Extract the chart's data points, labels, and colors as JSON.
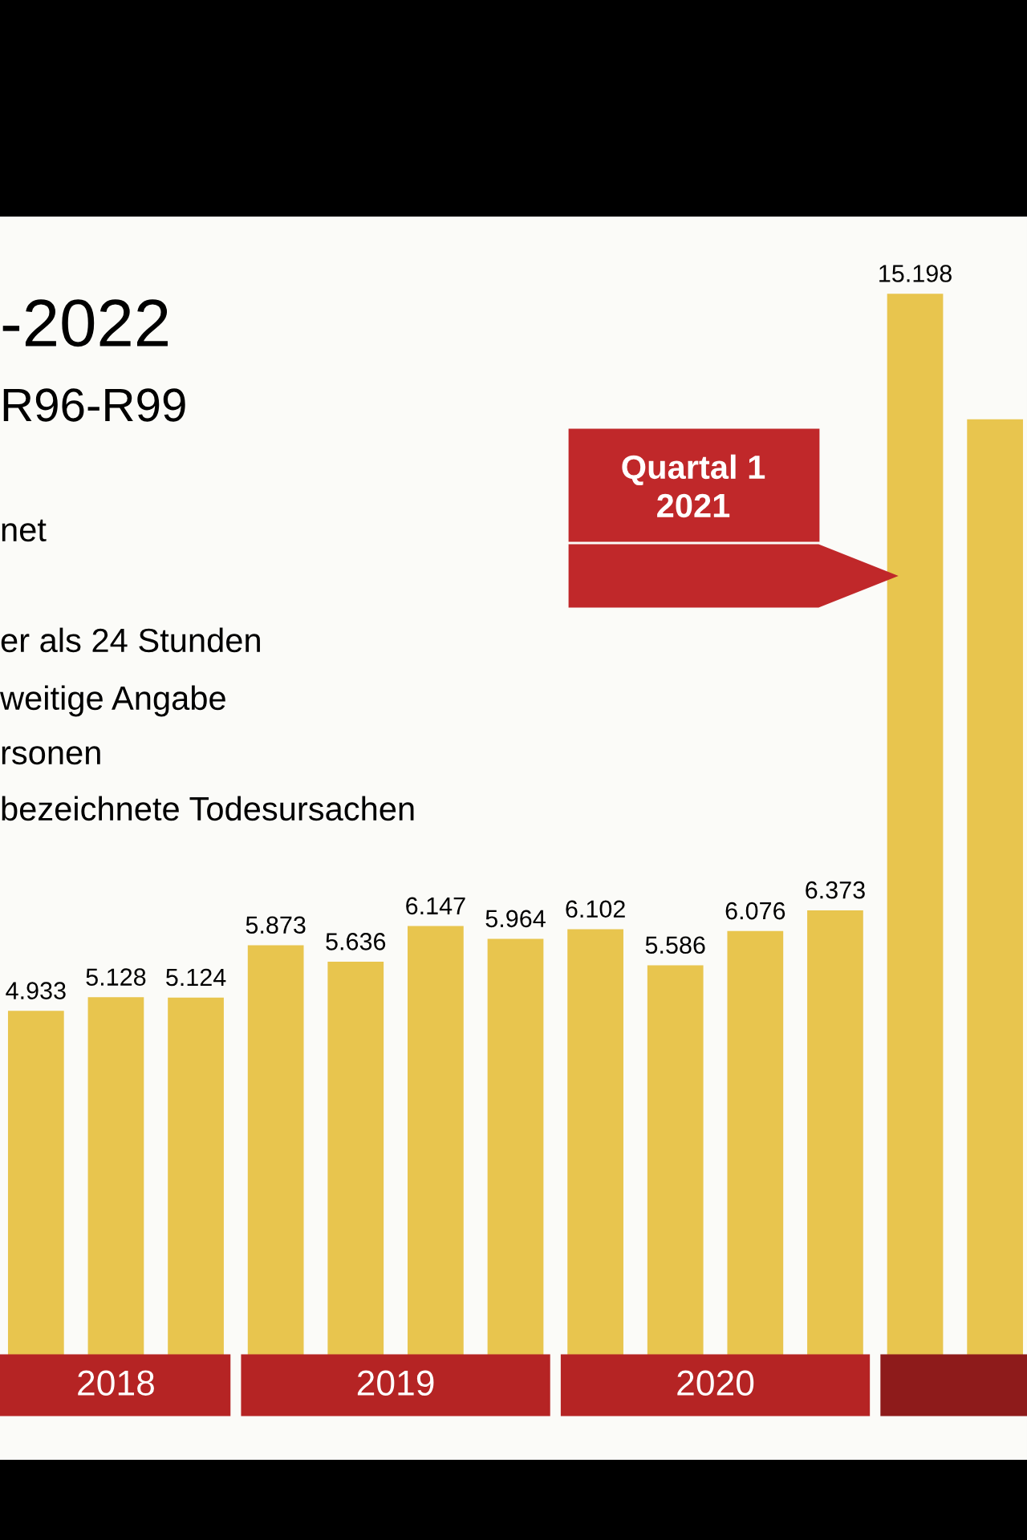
{
  "chart_data": {
    "type": "bar",
    "title": "-2022",
    "subtitle": "R96-R99",
    "categories": [
      null,
      null,
      null,
      null,
      null,
      null,
      null,
      null,
      null,
      null,
      null,
      null,
      null
    ],
    "values": [
      4933,
      5128,
      5124,
      5873,
      5636,
      6147,
      5964,
      6102,
      5586,
      6076,
      6373,
      15198,
      13400
    ],
    "value_labels": [
      "4.933",
      "5.128",
      "5.124",
      "5.873",
      "5.636",
      "6.147",
      "5.964",
      "6.102",
      "5.586",
      "6.076",
      "6.373",
      "15.198",
      null
    ],
    "color": "#e8c54e",
    "annotations": [
      "net",
      "er als 24 Stunden",
      "weitige Angabe",
      "rsonen",
      "bezeichnete Todesursachen",
      {
        "text": "Quartal 1\n2021"
      },
      "2018",
      "2019",
      "2020"
    ]
  }
}
